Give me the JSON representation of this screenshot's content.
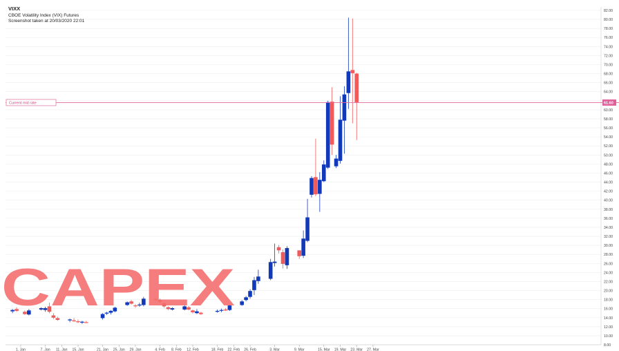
{
  "header": {
    "symbol": "VIXX",
    "description": "CBOE Volatility Index (VIX) Futures",
    "timestamp": "Screenshot taken at 20/03/2020 22:01"
  },
  "price_line": {
    "label": "Current mid rate",
    "value": "61.60"
  },
  "watermark": "CAPEX",
  "colors": {
    "up": "#1239b8",
    "down": "#f05a5a",
    "price_line": "#e06a9a",
    "background": "#ffffff",
    "watermark": "#f56b6b"
  },
  "chart_data": {
    "type": "candlestick",
    "title": "",
    "xlabel": "",
    "ylabel": "",
    "ylim": [
      8,
      82
    ],
    "y_ticks": [
      8.0,
      10.0,
      12.0,
      14.0,
      16.0,
      18.0,
      20.0,
      22.0,
      24.0,
      26.0,
      28.0,
      30.0,
      32.0,
      34.0,
      36.0,
      38.0,
      40.0,
      42.0,
      44.0,
      46.0,
      48.0,
      50.0,
      52.0,
      54.0,
      56.0,
      58.0,
      60.0,
      62.0,
      64.0,
      66.0,
      68.0,
      70.0,
      72.0,
      74.0,
      76.0,
      78.0,
      80.0,
      82.0
    ],
    "x_ticks": [
      "1. Jan",
      "7. Jan",
      "11. Jan",
      "15. Jan",
      "21. Jan",
      "25. Jan",
      "29. Jan",
      "4. Feb",
      "8. Feb",
      "12. Feb",
      "18. Feb",
      "22. Feb",
      "26. Feb",
      "3. Mar",
      "9. Mar",
      "15. Mar",
      "19. Mar",
      "23. Mar",
      "27. Mar"
    ],
    "grid": true,
    "candles": [
      {
        "date": "30. Dec",
        "o": 15.4,
        "h": 15.9,
        "l": 15.0,
        "c": 15.7
      },
      {
        "date": "31. Dec",
        "o": 15.9,
        "h": 16.3,
        "l": 15.3,
        "c": 15.5
      },
      {
        "date": "2. Jan",
        "o": 15.3,
        "h": 15.6,
        "l": 14.6,
        "c": 14.8
      },
      {
        "date": "3. Jan",
        "o": 14.7,
        "h": 15.9,
        "l": 14.5,
        "c": 15.6
      },
      {
        "date": "6. Jan",
        "o": 15.8,
        "h": 16.3,
        "l": 15.6,
        "c": 16.1
      },
      {
        "date": "7. Jan",
        "o": 15.7,
        "h": 16.4,
        "l": 15.3,
        "c": 16.1
      },
      {
        "date": "8. Jan",
        "o": 16.5,
        "h": 17.3,
        "l": 15.0,
        "c": 15.3
      },
      {
        "date": "9. Jan",
        "o": 14.5,
        "h": 15.0,
        "l": 13.7,
        "c": 14.0
      },
      {
        "date": "10. Jan",
        "o": 13.9,
        "h": 14.2,
        "l": 13.3,
        "c": 13.5
      },
      {
        "date": "13. Jan",
        "o": 13.4,
        "h": 13.8,
        "l": 13.0,
        "c": 13.6
      },
      {
        "date": "14. Jan",
        "o": 13.4,
        "h": 13.9,
        "l": 13.1,
        "c": 13.2
      },
      {
        "date": "15. Jan",
        "o": 13.2,
        "h": 13.6,
        "l": 12.8,
        "c": 13.0
      },
      {
        "date": "16. Jan",
        "o": 12.9,
        "h": 13.3,
        "l": 12.6,
        "c": 13.1
      },
      {
        "date": "17. Jan",
        "o": 13.0,
        "h": 13.3,
        "l": 12.8,
        "c": 12.9
      },
      {
        "date": "21. Jan",
        "o": 13.9,
        "h": 15.0,
        "l": 13.6,
        "c": 14.8
      },
      {
        "date": "22. Jan",
        "o": 14.9,
        "h": 15.3,
        "l": 14.6,
        "c": 15.1
      },
      {
        "date": "23. Jan",
        "o": 15.1,
        "h": 15.7,
        "l": 14.7,
        "c": 15.5
      },
      {
        "date": "24. Jan",
        "o": 15.4,
        "h": 16.4,
        "l": 15.2,
        "c": 16.2
      },
      {
        "date": "27. Jan",
        "o": 16.8,
        "h": 17.6,
        "l": 16.6,
        "c": 17.4
      },
      {
        "date": "28. Jan",
        "o": 17.6,
        "h": 17.9,
        "l": 16.9,
        "c": 17.1
      },
      {
        "date": "29. Jan",
        "o": 16.7,
        "h": 17.0,
        "l": 16.2,
        "c": 16.6
      },
      {
        "date": "30. Jan",
        "o": 16.7,
        "h": 17.3,
        "l": 16.4,
        "c": 16.9
      },
      {
        "date": "31. Jan",
        "o": 16.8,
        "h": 18.6,
        "l": 16.5,
        "c": 18.2
      },
      {
        "date": "3. Feb",
        "o": 18.1,
        "h": 18.4,
        "l": 17.7,
        "c": 17.9
      },
      {
        "date": "4. Feb",
        "o": 17.9,
        "h": 18.2,
        "l": 17.2,
        "c": 17.5
      },
      {
        "date": "5. Feb",
        "o": 17.2,
        "h": 17.4,
        "l": 16.2,
        "c": 16.5
      },
      {
        "date": "6. Feb",
        "o": 16.3,
        "h": 16.5,
        "l": 15.7,
        "c": 15.9
      },
      {
        "date": "7. Feb",
        "o": 15.8,
        "h": 16.3,
        "l": 15.6,
        "c": 16.1
      },
      {
        "date": "10. Feb",
        "o": 15.8,
        "h": 16.8,
        "l": 15.6,
        "c": 16.5
      },
      {
        "date": "11. Feb",
        "o": 16.3,
        "h": 16.6,
        "l": 15.6,
        "c": 15.8
      },
      {
        "date": "12. Feb",
        "o": 15.6,
        "h": 15.8,
        "l": 14.9,
        "c": 15.2
      },
      {
        "date": "13. Feb",
        "o": 15.0,
        "h": 15.9,
        "l": 14.8,
        "c": 15.4
      },
      {
        "date": "14. Feb",
        "o": 15.1,
        "h": 15.3,
        "l": 14.6,
        "c": 14.8
      },
      {
        "date": "18. Feb",
        "o": 15.3,
        "h": 15.8,
        "l": 15.1,
        "c": 15.5
      },
      {
        "date": "19. Feb",
        "o": 15.6,
        "h": 16.0,
        "l": 15.2,
        "c": 15.7
      },
      {
        "date": "20. Feb",
        "o": 15.8,
        "h": 16.1,
        "l": 15.5,
        "c": 15.6
      },
      {
        "date": "21. Feb",
        "o": 15.7,
        "h": 16.9,
        "l": 15.5,
        "c": 16.7
      },
      {
        "date": "24. Feb",
        "o": 16.8,
        "h": 17.9,
        "l": 16.6,
        "c": 17.6
      },
      {
        "date": "25. Feb",
        "o": 17.9,
        "h": 18.8,
        "l": 17.6,
        "c": 18.5
      },
      {
        "date": "26. Feb",
        "o": 18.6,
        "h": 20.3,
        "l": 18.2,
        "c": 19.9
      },
      {
        "date": "27. Feb",
        "o": 20.1,
        "h": 23.0,
        "l": 19.0,
        "c": 22.3
      },
      {
        "date": "28. Feb",
        "o": 22.1,
        "h": 24.6,
        "l": 21.5,
        "c": 23.1
      },
      {
        "date": "2. Mar",
        "o": 22.6,
        "h": 27.0,
        "l": 22.3,
        "c": 26.3
      },
      {
        "date": "3. Mar",
        "o": 26.1,
        "h": 30.4,
        "l": 25.3,
        "c": 26.4
      },
      {
        "date": "4. Mar",
        "o": 29.6,
        "h": 30.1,
        "l": 28.2,
        "c": 28.9
      },
      {
        "date": "5. Mar",
        "o": 28.5,
        "h": 29.1,
        "l": 24.9,
        "c": 25.9
      },
      {
        "date": "6. Mar",
        "o": 25.6,
        "h": 29.8,
        "l": 24.8,
        "c": 29.4
      },
      {
        "date": "9. Mar",
        "o": 28.9,
        "h": 28.9,
        "l": 27.0,
        "c": 27.6
      },
      {
        "date": "10. Mar",
        "o": 27.7,
        "h": 33.3,
        "l": 27.2,
        "c": 31.5
      },
      {
        "date": "11. Mar",
        "o": 31.0,
        "h": 40.3,
        "l": 30.7,
        "c": 36.2
      },
      {
        "date": "12. Mar",
        "o": 41.2,
        "h": 45.3,
        "l": 40.6,
        "c": 44.9
      },
      {
        "date": "13. Mar",
        "o": 45.1,
        "h": 53.6,
        "l": 40.9,
        "c": 41.3
      },
      {
        "date": "14. Mar",
        "o": 41.4,
        "h": 46.2,
        "l": 37.4,
        "c": 44.5
      },
      {
        "date": "15. Mar",
        "o": 44.2,
        "h": 48.8,
        "l": 44.0,
        "c": 47.9
      },
      {
        "date": "16. Mar",
        "o": 47.2,
        "h": 62.0,
        "l": 46.9,
        "c": 61.7
      },
      {
        "date": "17. Mar",
        "o": 61.8,
        "h": 65.0,
        "l": 50.0,
        "c": 52.3
      },
      {
        "date": "18. Mar",
        "o": 47.5,
        "h": 50.0,
        "l": 47.1,
        "c": 49.2
      },
      {
        "date": "19. Mar",
        "o": 48.7,
        "h": 63.0,
        "l": 48.1,
        "c": 57.8
      },
      {
        "date": "20. Mar",
        "o": 57.6,
        "h": 65.2,
        "l": 50.3,
        "c": 63.4
      },
      {
        "date": "21. Mar",
        "o": 63.7,
        "h": 80.4,
        "l": 60.2,
        "c": 68.5
      },
      {
        "date": "22. Mar",
        "o": 68.8,
        "h": 80.2,
        "l": 57.0,
        "c": 68.1
      },
      {
        "date": "23. Mar",
        "o": 68.0,
        "h": 68.2,
        "l": 53.3,
        "c": 61.6
      }
    ]
  }
}
